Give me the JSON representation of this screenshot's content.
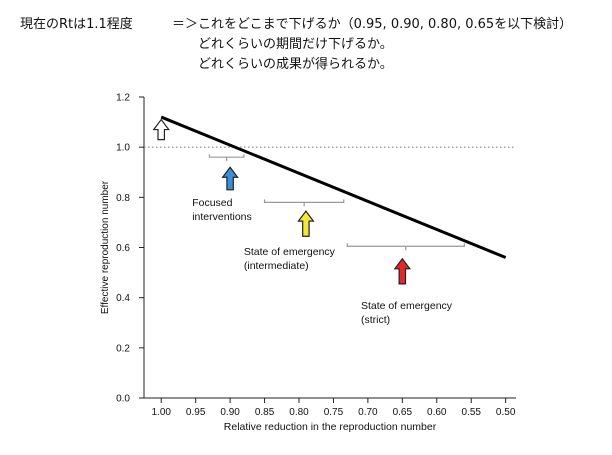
{
  "header": {
    "current": "現在のRtは1.1程度",
    "line1": "＝＞これをどこまで下げるか（0.95, 0.90, 0.80, 0.65を以下検討）",
    "line2": "どれくらいの期間だけ下げるか。",
    "line3": "どれくらいの成果が得られるか。"
  },
  "chart_data": {
    "type": "line",
    "title": "",
    "xlabel": "Relative reduction in the reproduction number",
    "ylabel": "Effective reproduction number",
    "xlim": [
      1.025,
      0.485
    ],
    "ylim": [
      0.0,
      1.2
    ],
    "x_ticks": [
      "1.00",
      "0.95",
      "0.90",
      "0.85",
      "0.80",
      "0.75",
      "0.70",
      "0.65",
      "0.60",
      "0.55",
      "0.50"
    ],
    "y_ticks": [
      "0.0",
      "0.2",
      "0.4",
      "0.6",
      "0.8",
      "1.0",
      "1.2"
    ],
    "series": [
      {
        "x": [
          1.0,
          0.5
        ],
        "y": [
          1.12,
          0.56
        ]
      }
    ],
    "reference_line": {
      "y": 1.0,
      "style": "dotted"
    },
    "start_marker": {
      "x": 1.0,
      "y_tip": 1.11,
      "y_base": 1.03,
      "color": "#ffffff"
    },
    "annotations": [
      {
        "id": "focused",
        "line1": "Focused",
        "line2": "interventions",
        "arrow_color": "#3b8fd6",
        "bracket": [
          0.93,
          0.88
        ],
        "bracket_y": 0.96,
        "x": 0.9,
        "arrow_tip": 0.92,
        "arrow_base": 0.83,
        "label_x": 0.955,
        "label_y": 0.765
      },
      {
        "id": "intermediate",
        "line1": "State of emergency",
        "line2": "(intermediate)",
        "arrow_color": "#f5e63a",
        "bracket": [
          0.85,
          0.735
        ],
        "bracket_y": 0.78,
        "x": 0.79,
        "arrow_tip": 0.745,
        "arrow_base": 0.645,
        "label_x": 0.88,
        "label_y": 0.57
      },
      {
        "id": "strict",
        "line1": "State of emergency",
        "line2": "(strict)",
        "arrow_color": "#e02a2a",
        "bracket": [
          0.73,
          0.56
        ],
        "bracket_y": 0.605,
        "x": 0.65,
        "arrow_tip": 0.555,
        "arrow_base": 0.455,
        "label_x": 0.71,
        "label_y": 0.355
      }
    ]
  }
}
